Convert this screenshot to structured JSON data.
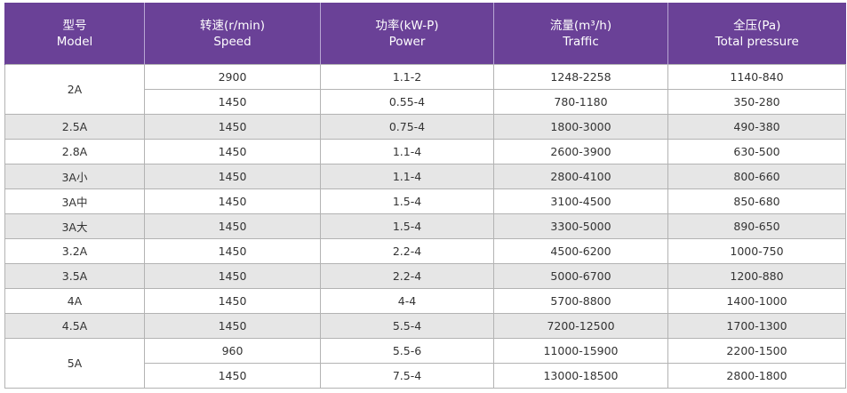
{
  "headers": [
    {
      "cn": "型号",
      "en": "Model"
    },
    {
      "cn": "转速(r/min)",
      "en": "Speed"
    },
    {
      "cn": "功率(kW-P)",
      "en": "Power"
    },
    {
      "cn": "流量(m³/h)",
      "en": "Traffic"
    },
    {
      "cn": "全压(Pa)",
      "en": "Total pressure"
    }
  ],
  "rows": [
    {
      "model": "2A",
      "speed": "2900",
      "power": "1.1-2",
      "traffic": "1248-2258",
      "pressure": "1140-840"
    },
    {
      "model": "",
      "speed": "1450",
      "power": "0.55-4",
      "traffic": "780-1180",
      "pressure": "350-280"
    },
    {
      "model": "2.5A",
      "speed": "1450",
      "power": "0.75-4",
      "traffic": "1800-3000",
      "pressure": "490-380"
    },
    {
      "model": "2.8A",
      "speed": "1450",
      "power": "1.1-4",
      "traffic": "2600-3900",
      "pressure": "630-500"
    },
    {
      "model": "3A小",
      "speed": "1450",
      "power": "1.1-4",
      "traffic": "2800-4100",
      "pressure": "800-660"
    },
    {
      "model": "3A中",
      "speed": "1450",
      "power": "1.5-4",
      "traffic": "3100-4500",
      "pressure": "850-680"
    },
    {
      "model": "3A大",
      "speed": "1450",
      "power": "1.5-4",
      "traffic": "3300-5000",
      "pressure": "890-650"
    },
    {
      "model": "3.2A",
      "speed": "1450",
      "power": "2.2-4",
      "traffic": "4500-6200",
      "pressure": "1000-750"
    },
    {
      "model": "3.5A",
      "speed": "1450",
      "power": "2.2-4",
      "traffic": "5000-6700",
      "pressure": "1200-880"
    },
    {
      "model": "4A",
      "speed": "1450",
      "power": "4-4",
      "traffic": "5700-8800",
      "pressure": "1400-1000"
    },
    {
      "model": "4.5A",
      "speed": "1450",
      "power": "5.5-4",
      "traffic": "7200-12500",
      "pressure": "1700-1300"
    },
    {
      "model": "5A",
      "speed": "960",
      "power": "5.5-6",
      "traffic": "11000-15900",
      "pressure": "2200-1500"
    },
    {
      "model": "",
      "speed": "1450",
      "power": "7.5-4",
      "traffic": "13000-18500",
      "pressure": "2800-1800"
    }
  ]
}
